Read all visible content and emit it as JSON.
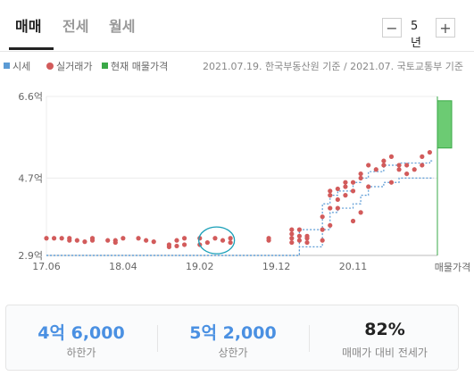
{
  "tabs": [
    {
      "label": "매매",
      "active": true
    },
    {
      "label": "전세",
      "active": false
    },
    {
      "label": "월세",
      "active": false
    }
  ],
  "period": {
    "minus_label": "−",
    "value": "5년",
    "plus_label": "+"
  },
  "legend": {
    "items": [
      {
        "label": "시세",
        "color": "#5b9bd5",
        "shape": "square"
      },
      {
        "label": "실거래가",
        "color": "#d25b5b",
        "shape": "dot"
      },
      {
        "label": "현재 매물가격",
        "color": "#3aa847",
        "shape": "square"
      }
    ],
    "source": "2021.07.19. 한국부동산원 기준 / 2021.07. 국토교통부 기준"
  },
  "chart_data": {
    "type": "scatter",
    "y_tick_labels": [
      "6.6억",
      "4.7억",
      "2.9억"
    ],
    "y_tick_values": [
      6.6,
      4.7,
      2.9
    ],
    "x_tick_labels": [
      "17.06",
      "18.04",
      "19.02",
      "19.12",
      "20.11"
    ],
    "x_tick_values": [
      0,
      10,
      20,
      30,
      40
    ],
    "ylim": [
      2.9,
      6.6
    ],
    "xlim": [
      0,
      51
    ],
    "current_listing": {
      "label": "매물가격",
      "low": 5.4,
      "high": 6.5
    },
    "transactions": [
      [
        0,
        3.3
      ],
      [
        1,
        3.3
      ],
      [
        2,
        3.3
      ],
      [
        3,
        3.25
      ],
      [
        3,
        3.3
      ],
      [
        4,
        3.25
      ],
      [
        5,
        3.22
      ],
      [
        6,
        3.25
      ],
      [
        6,
        3.3
      ],
      [
        8,
        3.25
      ],
      [
        9,
        3.2
      ],
      [
        9,
        3.25
      ],
      [
        10,
        3.3
      ],
      [
        12,
        3.3
      ],
      [
        13,
        3.25
      ],
      [
        14,
        3.22
      ],
      [
        16,
        3.1
      ],
      [
        16,
        3.15
      ],
      [
        17,
        3.12
      ],
      [
        17,
        3.25
      ],
      [
        18,
        3.15
      ],
      [
        18,
        3.3
      ],
      [
        20,
        3.15
      ],
      [
        20,
        3.3
      ],
      [
        21,
        3.2
      ],
      [
        22,
        3.3
      ],
      [
        23,
        3.25
      ],
      [
        24,
        3.2
      ],
      [
        24,
        3.3
      ],
      [
        29,
        3.25
      ],
      [
        29,
        3.3
      ],
      [
        32,
        3.2
      ],
      [
        32,
        3.3
      ],
      [
        32,
        3.4
      ],
      [
        32,
        3.5
      ],
      [
        33,
        3.25
      ],
      [
        33,
        3.35
      ],
      [
        33,
        3.5
      ],
      [
        34,
        3.2
      ],
      [
        34,
        3.3
      ],
      [
        34,
        3.35
      ],
      [
        36,
        3.25
      ],
      [
        36,
        3.5
      ],
      [
        36,
        3.8
      ],
      [
        37,
        3.6
      ],
      [
        37,
        4.0
      ],
      [
        37,
        4.3
      ],
      [
        37,
        4.4
      ],
      [
        38,
        4.0
      ],
      [
        38,
        4.2
      ],
      [
        38,
        4.45
      ],
      [
        39,
        4.3
      ],
      [
        39,
        4.5
      ],
      [
        39,
        4.6
      ],
      [
        40,
        3.7
      ],
      [
        40,
        4.4
      ],
      [
        40,
        4.6
      ],
      [
        41,
        3.9
      ],
      [
        41,
        4.7
      ],
      [
        41,
        4.8
      ],
      [
        42,
        4.5
      ],
      [
        42,
        5.0
      ],
      [
        43,
        4.9
      ],
      [
        44,
        5.0
      ],
      [
        44,
        5.1
      ],
      [
        45,
        4.6
      ],
      [
        45,
        5.2
      ],
      [
        46,
        4.9
      ],
      [
        46,
        5.0
      ],
      [
        47,
        4.8
      ],
      [
        47,
        5.0
      ],
      [
        48,
        4.9
      ],
      [
        49,
        5.0
      ],
      [
        49,
        5.2
      ],
      [
        50,
        5.3
      ]
    ],
    "price_band": [
      {
        "x": 0,
        "low": 2.9,
        "high": 2.9
      },
      {
        "x": 32,
        "low": 2.9,
        "high": 2.9
      },
      {
        "x": 33,
        "low": 3.1,
        "high": 3.5
      },
      {
        "x": 36,
        "low": 3.5,
        "high": 4.1
      },
      {
        "x": 37,
        "low": 3.9,
        "high": 4.3
      },
      {
        "x": 38,
        "low": 4.0,
        "high": 4.4
      },
      {
        "x": 40,
        "low": 4.1,
        "high": 4.6
      },
      {
        "x": 41,
        "low": 4.3,
        "high": 4.7
      },
      {
        "x": 42,
        "low": 4.5,
        "high": 4.85
      },
      {
        "x": 44,
        "low": 4.6,
        "high": 5.0
      },
      {
        "x": 46,
        "low": 4.7,
        "high": 5.05
      },
      {
        "x": 48,
        "low": 4.7,
        "high": 5.05
      },
      {
        "x": 50,
        "low": 4.7,
        "high": 5.1
      }
    ],
    "highlight_circle": {
      "x": 22.2,
      "y": 3.25
    }
  },
  "summary": {
    "low_value": "4억 6,000",
    "low_label": "하한가",
    "high_value": "5억 2,000",
    "high_label": "상한가",
    "ratio_value": "82%",
    "ratio_label": "매매가 대비 전세가"
  }
}
